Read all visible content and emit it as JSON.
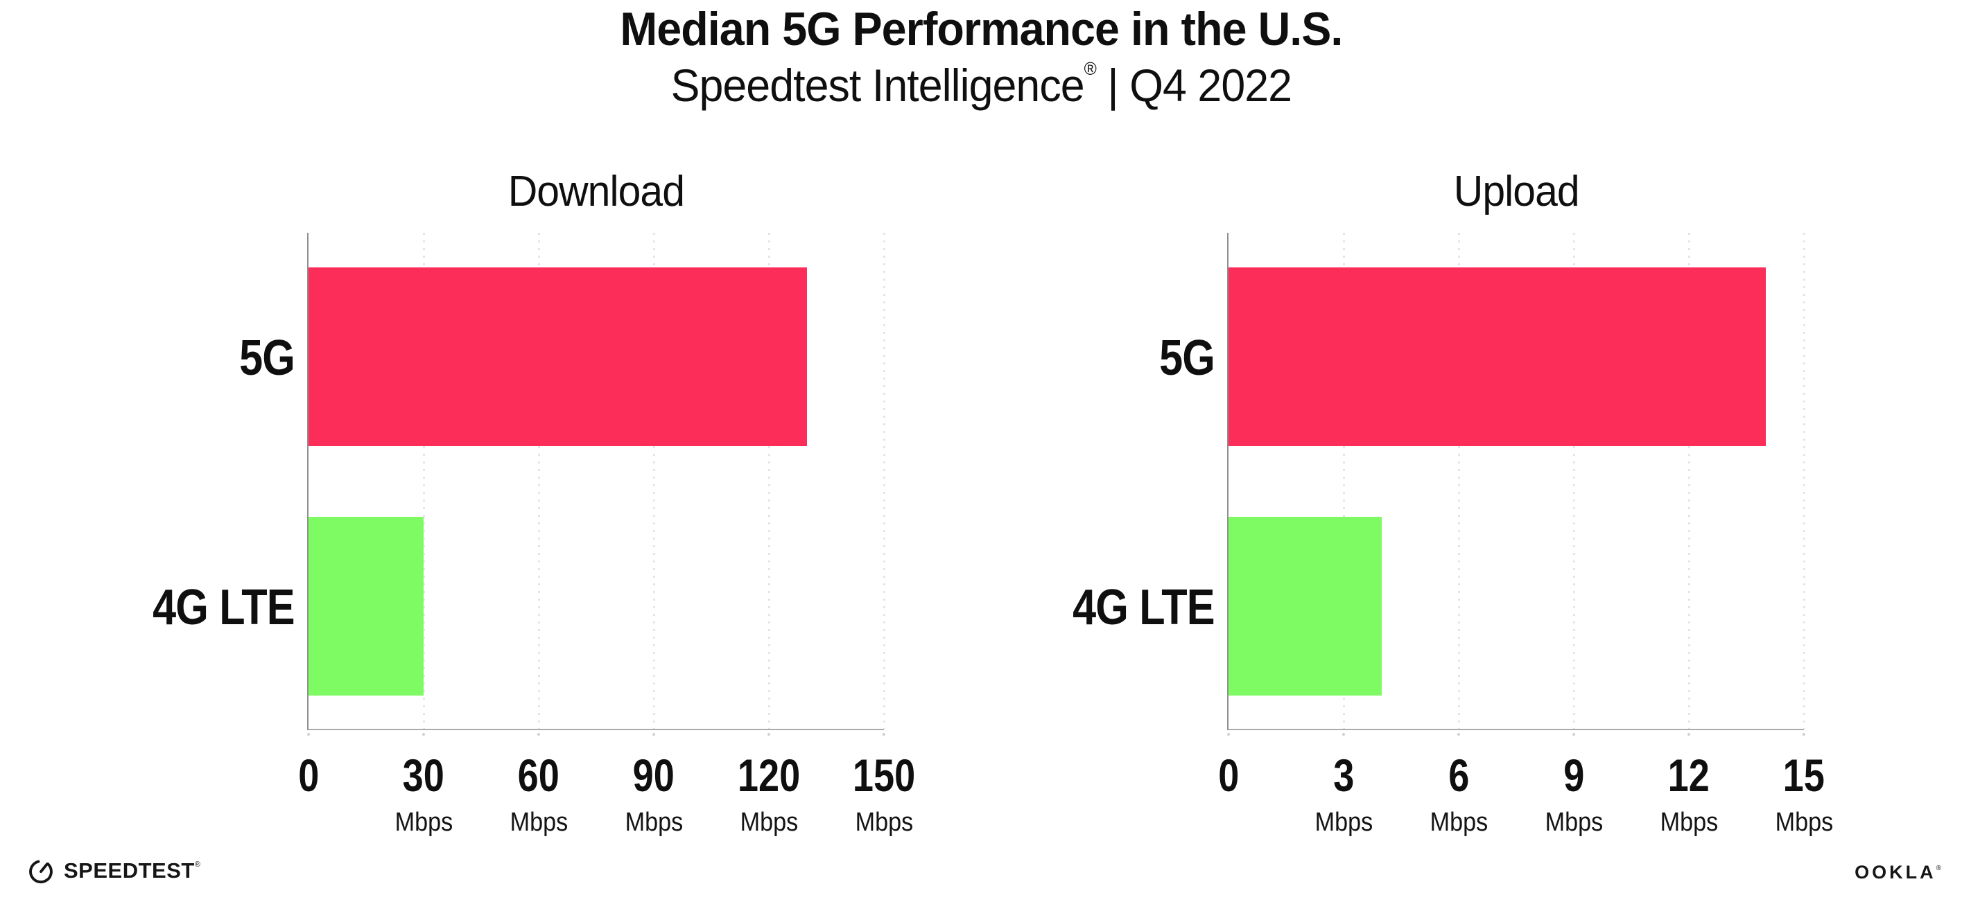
{
  "header": {
    "title": "Median 5G Performance in the U.S.",
    "subtitle_brand": "Speedtest Intelligence",
    "subtitle_reg": "®",
    "subtitle_sep": " | ",
    "subtitle_period": "Q4 2022"
  },
  "chart_data": [
    {
      "type": "bar",
      "orientation": "horizontal",
      "title": "Download",
      "categories": [
        "5G",
        "4G LTE"
      ],
      "values": [
        130,
        30
      ],
      "unit": "Mbps",
      "xlim": [
        0,
        150
      ],
      "xticks": [
        0,
        30,
        60,
        90,
        120,
        150
      ],
      "bar_colors": [
        "#fc2d58",
        "#7efa62"
      ],
      "grid": "dotted-vertical-at-ticks",
      "legend": "none"
    },
    {
      "type": "bar",
      "orientation": "horizontal",
      "title": "Upload",
      "categories": [
        "5G",
        "4G LTE"
      ],
      "values": [
        14,
        4
      ],
      "unit": "Mbps",
      "xlim": [
        0,
        15
      ],
      "xticks": [
        0,
        3,
        6,
        9,
        12,
        15
      ],
      "bar_colors": [
        "#fc2d58",
        "#7efa62"
      ],
      "grid": "dotted-vertical-at-ticks",
      "legend": "none"
    }
  ],
  "colors": {
    "bar_5g": "#fc2d58",
    "bar_4g_lte": "#7efa62",
    "gridline": "#e4e4ee",
    "axis": "#ababab",
    "text": "#0f0f0f"
  },
  "footer": {
    "speedtest_label": "SPEEDTEST",
    "speedtest_mark": "®",
    "ookla_label": "OOKLA",
    "ookla_mark": "®"
  }
}
